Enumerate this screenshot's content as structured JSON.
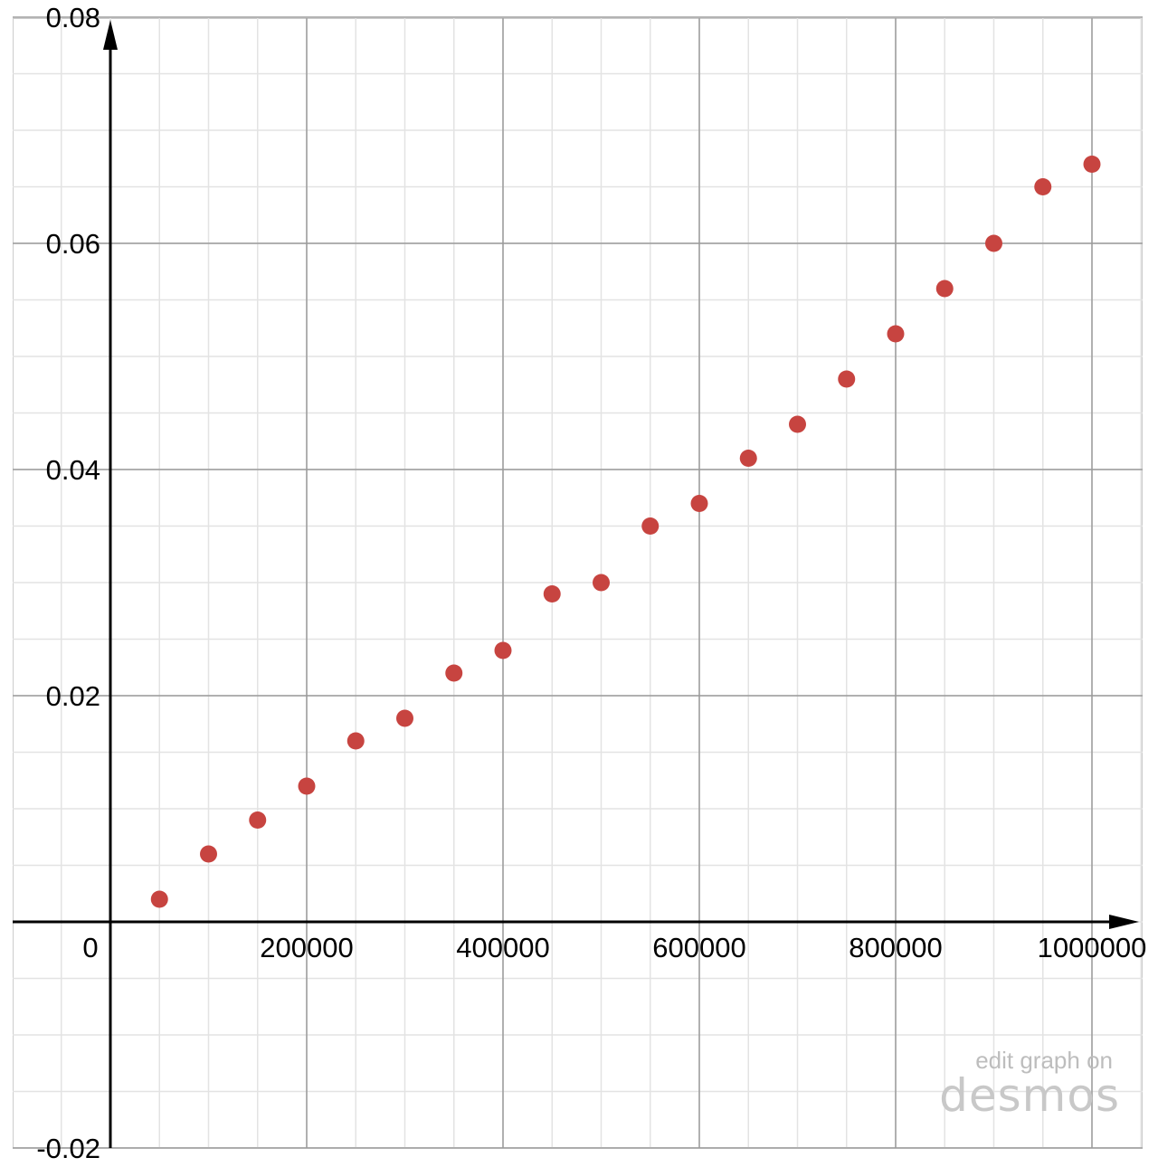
{
  "chart_data": {
    "type": "scatter",
    "title": "",
    "xlabel": "",
    "ylabel": "",
    "xlim": [
      -50000,
      1050000
    ],
    "ylim": [
      -0.02,
      0.081
    ],
    "grid": true,
    "x_ticks": [
      {
        "value": 0,
        "label": "0"
      },
      {
        "value": 200000,
        "label": "200000"
      },
      {
        "value": 400000,
        "label": "400000"
      },
      {
        "value": 600000,
        "label": "600000"
      },
      {
        "value": 800000,
        "label": "800000"
      },
      {
        "value": 1000000,
        "label": "1000000"
      }
    ],
    "y_ticks": [
      {
        "value": -0.02,
        "label": "-0.02"
      },
      {
        "value": 0.02,
        "label": "0.02"
      },
      {
        "value": 0.04,
        "label": "0.04"
      },
      {
        "value": 0.06,
        "label": "0.06"
      },
      {
        "value": 0.08,
        "label": "0.08"
      }
    ],
    "point_color": "#c74440",
    "series": [
      {
        "x": [
          50000,
          100000,
          150000,
          200000,
          250000,
          300000,
          350000,
          400000,
          450000,
          500000,
          550000,
          600000,
          650000,
          700000,
          750000,
          800000,
          850000,
          900000,
          950000,
          1000000
        ],
        "y": [
          0.002,
          0.006,
          0.009,
          0.012,
          0.016,
          0.018,
          0.022,
          0.024,
          0.029,
          0.03,
          0.035,
          0.037,
          0.041,
          0.044,
          0.048,
          0.052,
          0.056,
          0.06,
          0.065,
          0.067
        ]
      }
    ]
  },
  "watermark": {
    "line1": "edit graph on",
    "line2": "desmos"
  }
}
